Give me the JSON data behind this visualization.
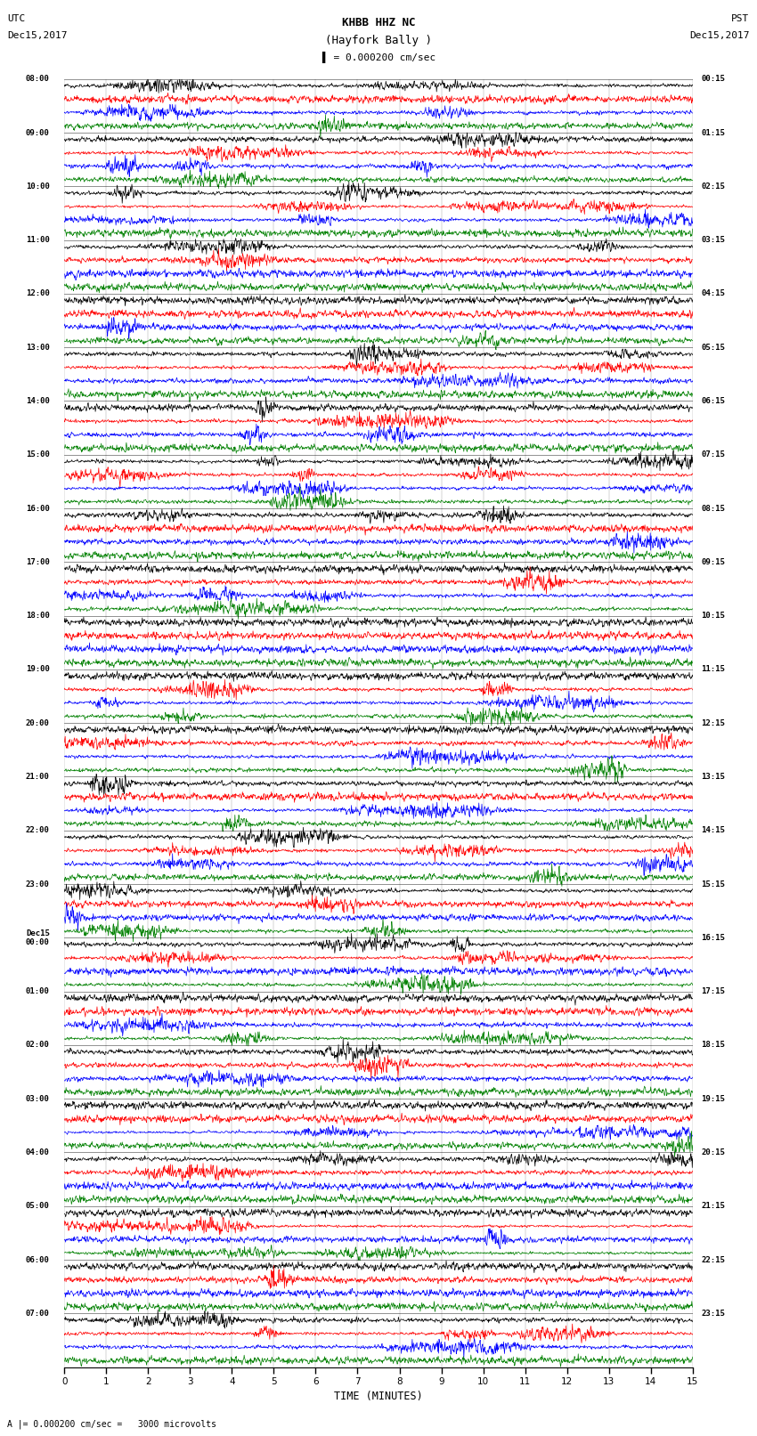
{
  "title_line1": "KHBB HHZ NC",
  "title_line2": "(Hayfork Bally )",
  "scale_label": "= 0.000200 cm/sec",
  "bottom_label": "= 0.000200 cm/sec =   3000 microvolts",
  "left_header_line1": "UTC",
  "left_header_line2": "Dec15,2017",
  "right_header_line1": "PST",
  "right_header_line2": "Dec15,2017",
  "xlabel": "TIME (MINUTES)",
  "trace_colors": [
    "black",
    "red",
    "blue",
    "green"
  ],
  "bg_color": "#ffffff",
  "rows_per_hour": 4,
  "minutes_per_trace": 15,
  "n_hours": 24,
  "total_rows": 96,
  "left_labels_utc": [
    "08:00",
    "09:00",
    "10:00",
    "11:00",
    "12:00",
    "13:00",
    "14:00",
    "15:00",
    "16:00",
    "17:00",
    "18:00",
    "19:00",
    "20:00",
    "21:00",
    "22:00",
    "23:00",
    "Dec15\n00:00",
    "01:00",
    "02:00",
    "03:00",
    "04:00",
    "05:00",
    "06:00",
    "07:00"
  ],
  "right_labels_pst": [
    "00:15",
    "01:15",
    "02:15",
    "03:15",
    "04:15",
    "05:15",
    "06:15",
    "07:15",
    "08:15",
    "09:15",
    "10:15",
    "11:15",
    "12:15",
    "13:15",
    "14:15",
    "15:15",
    "16:15",
    "17:15",
    "18:15",
    "19:15",
    "20:15",
    "21:15",
    "22:15",
    "23:15"
  ],
  "seed": 42
}
